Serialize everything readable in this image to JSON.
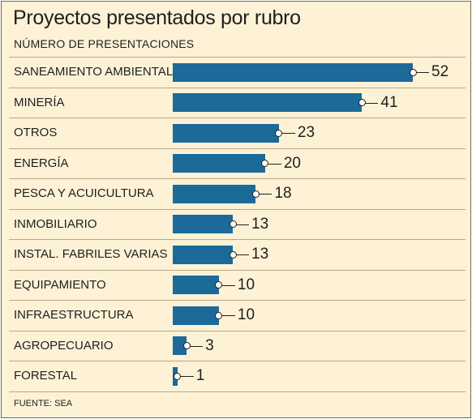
{
  "chart_data": {
    "type": "bar",
    "orientation": "horizontal",
    "title": "Proyectos presentados por rubro",
    "subtitle": "NÚMERO DE PRESENTACIONES",
    "source": "FUENTE: SEA",
    "categories": [
      "SANEAMIENTO AMBIENTAL",
      "MINERÍA",
      "OTROS",
      "ENERGÍA",
      "PESCA Y ACUICULTURA",
      "INMOBILIARIO",
      "INSTAL. FABRILES VARIAS",
      "EQUIPAMIENTO",
      "INFRAESTRUCTURA",
      "AGROPECUARIO",
      "FORESTAL"
    ],
    "values": [
      52,
      41,
      23,
      20,
      18,
      13,
      13,
      10,
      10,
      3,
      1
    ],
    "bar_color": "#1b6a9a",
    "background_color": "#fdf2d6"
  }
}
